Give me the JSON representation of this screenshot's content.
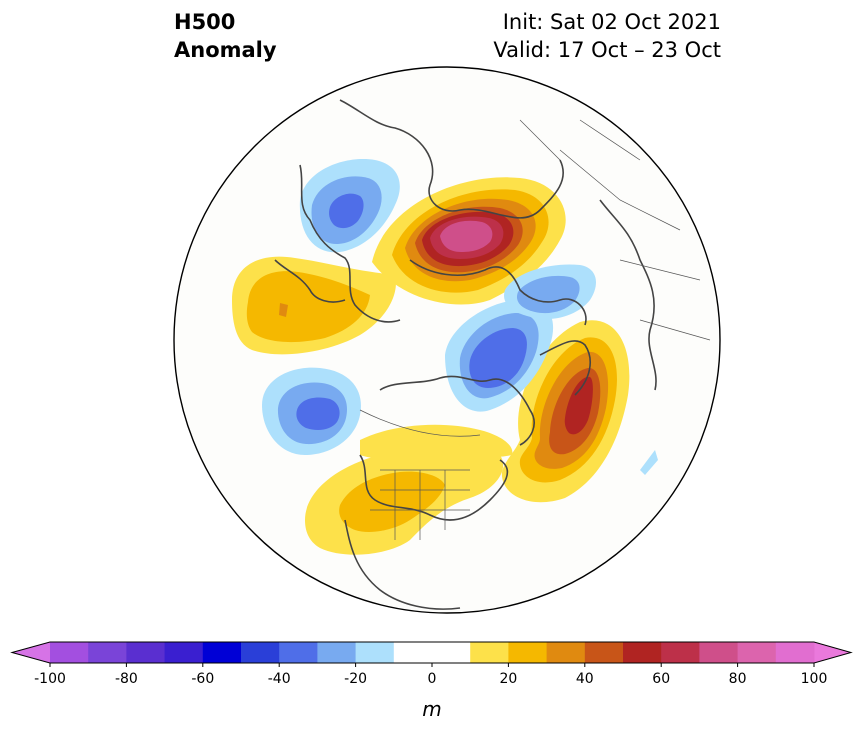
{
  "header": {
    "title_line1": "H500",
    "title_line2": "Anomaly",
    "init_text": "Init: Sat 02 Oct 2021",
    "valid_text": "Valid: 17 Oct – 23 Oct"
  },
  "map": {
    "projection": "north-polar-stereographic",
    "background": "#fdfdfb",
    "coastline_color": "#444444"
  },
  "colorbar": {
    "unit": "m",
    "levels": [
      -100,
      -90,
      -80,
      -70,
      -60,
      -50,
      -40,
      -30,
      -20,
      -10,
      0,
      10,
      20,
      30,
      40,
      50,
      60,
      70,
      80,
      90,
      100
    ],
    "tick_labels": [
      "-100",
      "-80",
      "-60",
      "-40",
      "-20",
      "0",
      "20",
      "40",
      "60",
      "80",
      "100"
    ],
    "colors": [
      "#a34fe0",
      "#7a44d8",
      "#5a2fd0",
      "#3a1fd0",
      "#0000d6",
      "#2a3fd8",
      "#4f6ee8",
      "#78aaf0",
      "#ade0fc",
      "#ffffff",
      "#ffffff",
      "#fde14a",
      "#f5b800",
      "#e08a10",
      "#c85518",
      "#b02422",
      "#bd3049",
      "#cf4f8a",
      "#dc64ad",
      "#e16ed0"
    ],
    "extend_low_color": "#d673e6",
    "extend_high_color": "#ea79dc"
  }
}
